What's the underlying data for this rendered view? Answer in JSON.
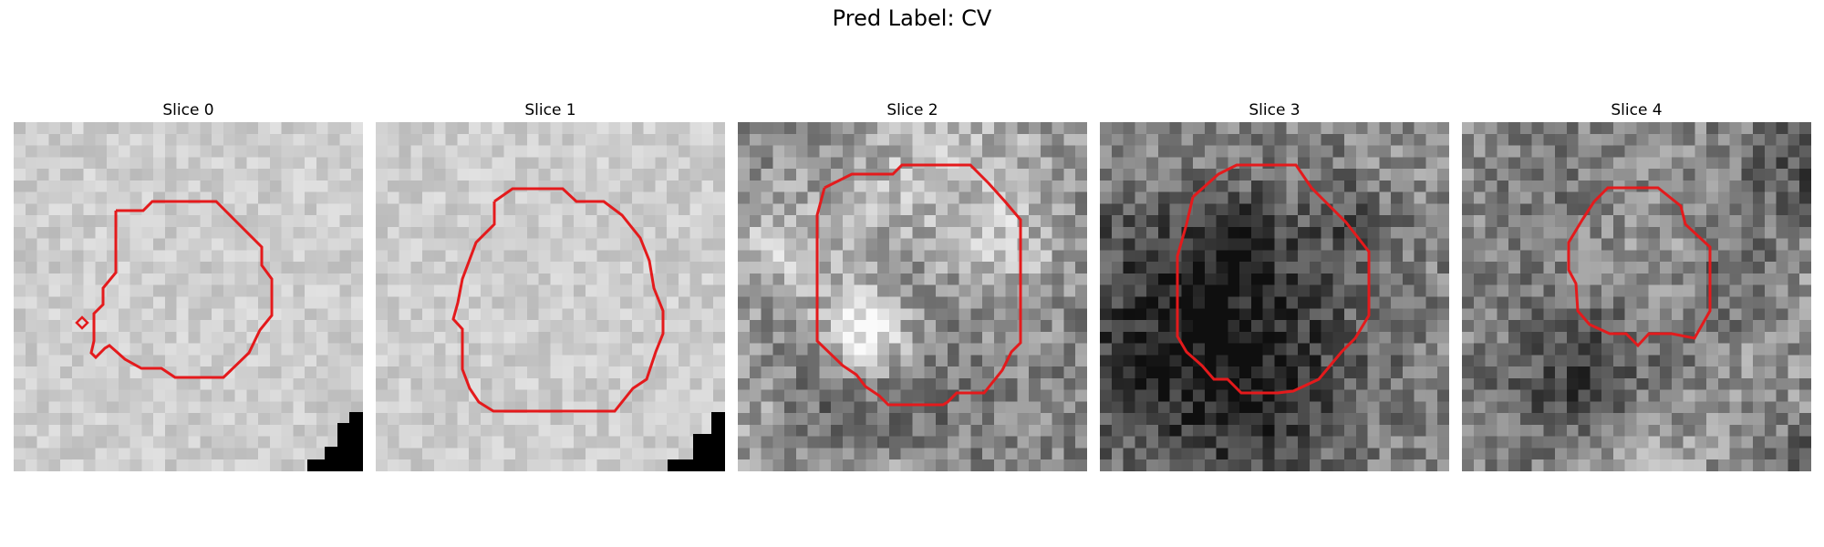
{
  "figure": {
    "title": "Pred Label: CV"
  },
  "panels": [
    {
      "title": "Slice 0",
      "texture": "light-uniform",
      "seed": 11,
      "contour_color": "#e41a1c"
    },
    {
      "title": "Slice 1",
      "texture": "light-uniform",
      "seed": 23,
      "contour_color": "#e41a1c"
    },
    {
      "title": "Slice 2",
      "texture": "dark-mottled",
      "seed": 37,
      "contour_color": "#e41a1c"
    },
    {
      "title": "Slice 3",
      "texture": "dark-mottled",
      "seed": 53,
      "contour_color": "#e41a1c"
    },
    {
      "title": "Slice 4",
      "texture": "dark-streaked",
      "seed": 71,
      "contour_color": "#e41a1c"
    }
  ]
}
